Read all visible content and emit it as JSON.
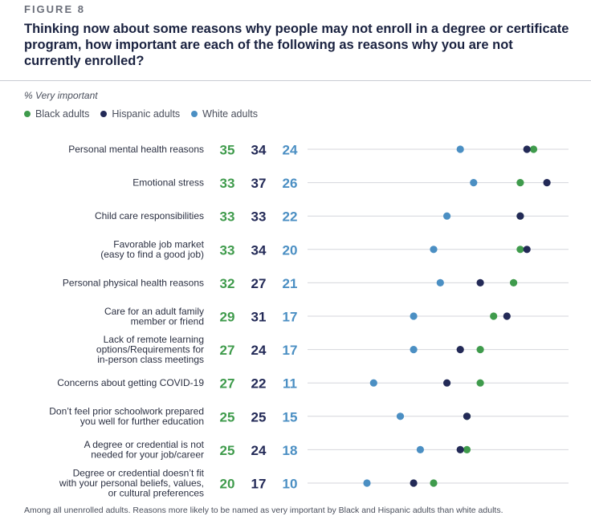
{
  "figure_label": "FIGURE 8",
  "title": "Thinking now about some reasons why people may not enroll in a degree or certificate program, how important are each of the following as reasons why you are not currently enrolled?",
  "subtitle": "% Very important",
  "note": "Among all unenrolled adults. Reasons more likely to be named as very important by Black and Hispanic adults than white adults.",
  "colors": {
    "black": "#3f9b4c",
    "hispanic": "#232a57",
    "white": "#4b8fc3",
    "axis": "#d4d6db"
  },
  "legend": [
    {
      "name": "Black adults",
      "color": "#3f9b4c"
    },
    {
      "name": "Hispanic adults",
      "color": "#232a57"
    },
    {
      "name": "White adults",
      "color": "#4b8fc3"
    }
  ],
  "chart_data": {
    "type": "scatter",
    "xlim": [
      0,
      40
    ],
    "categories": [
      [
        "Personal mental health reasons"
      ],
      [
        "Emotional stress"
      ],
      [
        "Child care responsibilities"
      ],
      [
        "Favorable job market",
        "(easy to find a good job)"
      ],
      [
        "Personal physical health reasons"
      ],
      [
        "Care for an adult family",
        "member or friend"
      ],
      [
        "Lack of remote learning",
        "options/Requirements for",
        "in-person class meetings"
      ],
      [
        "Concerns about getting COVID-19"
      ],
      [
        "Don’t feel prior schoolwork prepared",
        "you well for further education"
      ],
      [
        "A degree or credential is not",
        "needed for your job/career"
      ],
      [
        "Degree or credential doesn’t fit",
        "with your personal beliefs, values,",
        "or cultural preferences"
      ]
    ],
    "series": [
      {
        "name": "Black adults",
        "key": "black",
        "values": [
          35,
          33,
          33,
          33,
          32,
          29,
          27,
          27,
          25,
          25,
          20
        ]
      },
      {
        "name": "Hispanic adults",
        "key": "hispanic",
        "values": [
          34,
          37,
          33,
          34,
          27,
          31,
          24,
          22,
          25,
          24,
          17
        ]
      },
      {
        "name": "White adults",
        "key": "white",
        "values": [
          24,
          26,
          22,
          20,
          21,
          17,
          17,
          11,
          15,
          18,
          10
        ]
      }
    ]
  }
}
